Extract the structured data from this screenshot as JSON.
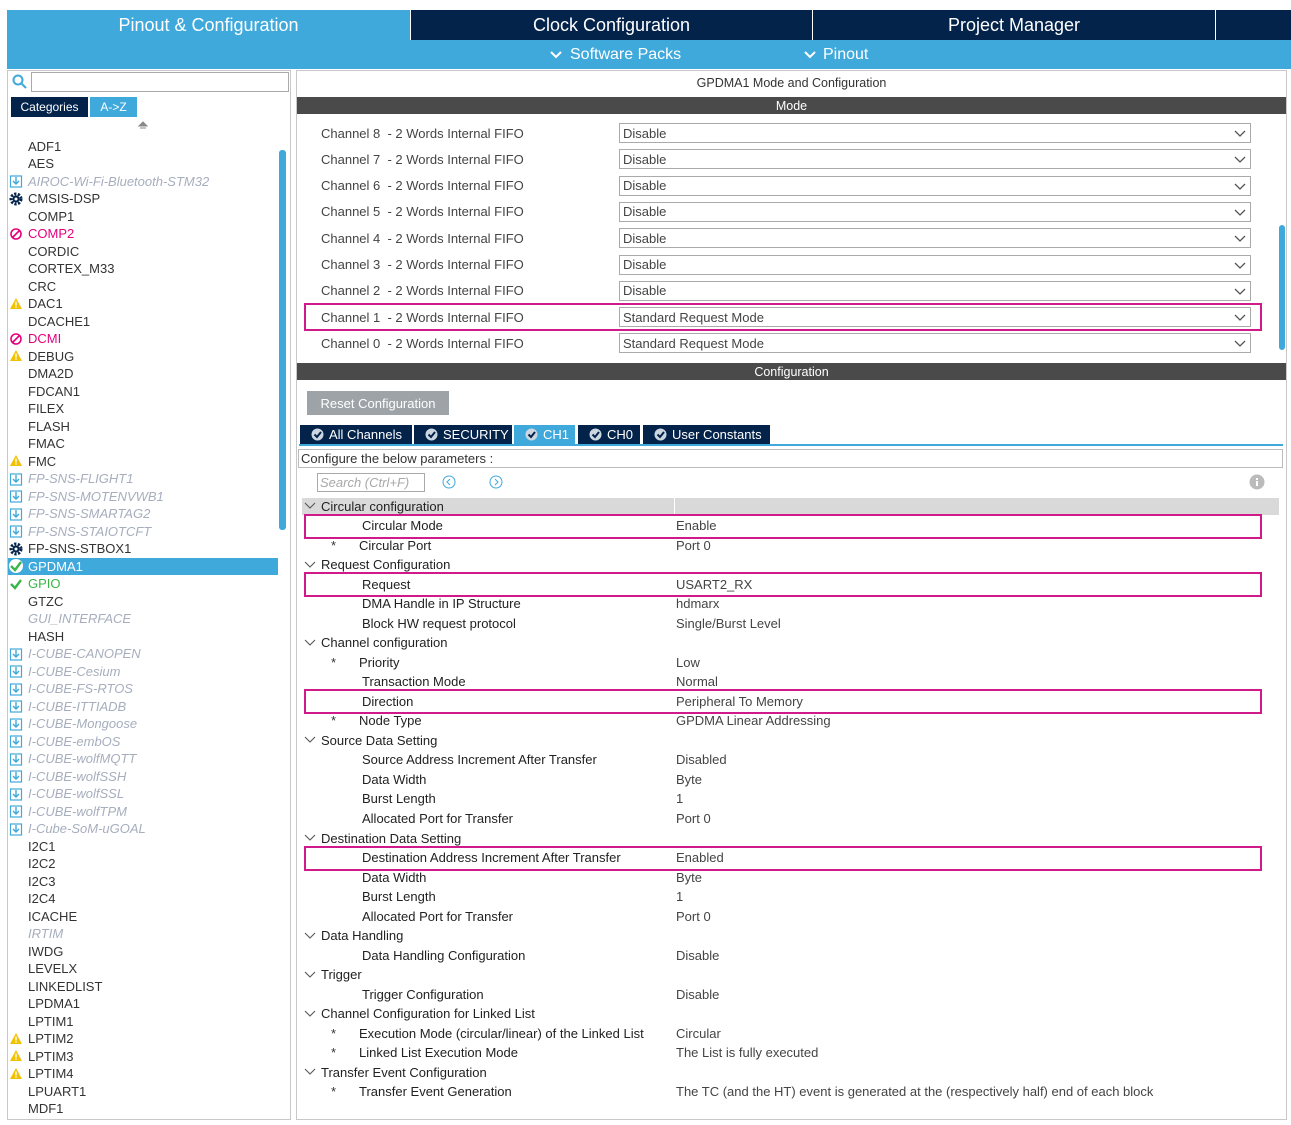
{
  "tabs": [
    {
      "label": "Pinout & Configuration",
      "active": true
    },
    {
      "label": "Clock Configuration"
    },
    {
      "label": "Project Manager"
    }
  ],
  "subtabs": [
    "Software Packs",
    "Pinout"
  ],
  "sidebar": {
    "tabs": [
      {
        "label": "Categories"
      },
      {
        "label": "A->Z",
        "active": true
      }
    ],
    "items": [
      {
        "label": "ADF1"
      },
      {
        "label": "AES"
      },
      {
        "label": "AIROC-Wi-Fi-Bluetooth-STM32",
        "status": "download"
      },
      {
        "label": "CMSIS-DSP",
        "status": "gear"
      },
      {
        "label": "COMP1"
      },
      {
        "label": "COMP2",
        "status": "error"
      },
      {
        "label": "CORDIC"
      },
      {
        "label": "CORTEX_M33"
      },
      {
        "label": "CRC"
      },
      {
        "label": "DAC1",
        "status": "warning"
      },
      {
        "label": "DCACHE1"
      },
      {
        "label": "DCMI",
        "status": "error"
      },
      {
        "label": "DEBUG",
        "status": "warning"
      },
      {
        "label": "DMA2D"
      },
      {
        "label": "FDCAN1"
      },
      {
        "label": "FILEX"
      },
      {
        "label": "FLASH"
      },
      {
        "label": "FMAC"
      },
      {
        "label": "FMC",
        "status": "warning"
      },
      {
        "label": "FP-SNS-FLIGHT1",
        "status": "download"
      },
      {
        "label": "FP-SNS-MOTENVWB1",
        "status": "download"
      },
      {
        "label": "FP-SNS-SMARTAG2",
        "status": "download"
      },
      {
        "label": "FP-SNS-STAIOTCFT",
        "status": "download"
      },
      {
        "label": "FP-SNS-STBOX1",
        "status": "gear"
      },
      {
        "label": "GPDMA1",
        "status": "check",
        "selected": true
      },
      {
        "label": "GPIO",
        "status": "check"
      },
      {
        "label": "GTZC"
      },
      {
        "label": "GUI_INTERFACE",
        "status": "disabled"
      },
      {
        "label": "HASH"
      },
      {
        "label": "I-CUBE-CANOPEN",
        "status": "download"
      },
      {
        "label": "I-CUBE-Cesium",
        "status": "download"
      },
      {
        "label": "I-CUBE-FS-RTOS",
        "status": "download"
      },
      {
        "label": "I-CUBE-ITTIADB",
        "status": "download"
      },
      {
        "label": "I-CUBE-Mongoose",
        "status": "download"
      },
      {
        "label": "I-CUBE-embOS",
        "status": "download"
      },
      {
        "label": "I-CUBE-wolfMQTT",
        "status": "download"
      },
      {
        "label": "I-CUBE-wolfSSH",
        "status": "download"
      },
      {
        "label": "I-CUBE-wolfSSL",
        "status": "download"
      },
      {
        "label": "I-CUBE-wolfTPM",
        "status": "download"
      },
      {
        "label": "I-Cube-SoM-uGOAL",
        "status": "download"
      },
      {
        "label": "I2C1"
      },
      {
        "label": "I2C2"
      },
      {
        "label": "I2C3"
      },
      {
        "label": "I2C4"
      },
      {
        "label": "ICACHE"
      },
      {
        "label": "IRTIM",
        "status": "disabled"
      },
      {
        "label": "IWDG"
      },
      {
        "label": "LEVELX"
      },
      {
        "label": "LINKEDLIST"
      },
      {
        "label": "LPDMA1"
      },
      {
        "label": "LPTIM1"
      },
      {
        "label": "LPTIM2",
        "status": "warning"
      },
      {
        "label": "LPTIM3",
        "status": "warning"
      },
      {
        "label": "LPTIM4",
        "status": "warning"
      },
      {
        "label": "LPUART1"
      },
      {
        "label": "MDF1"
      }
    ]
  },
  "panel": {
    "title": "GPDMA1 Mode and Configuration",
    "mode_header": "Mode",
    "channels": [
      {
        "label": "Channel 8  - 2 Words Internal FIFO",
        "value": "Disable"
      },
      {
        "label": "Channel 7  - 2 Words Internal FIFO",
        "value": "Disable"
      },
      {
        "label": "Channel 6  - 2 Words Internal FIFO",
        "value": "Disable"
      },
      {
        "label": "Channel 5  - 2 Words Internal FIFO",
        "value": "Disable"
      },
      {
        "label": "Channel 4  - 2 Words Internal FIFO",
        "value": "Disable"
      },
      {
        "label": "Channel 3  - 2 Words Internal FIFO",
        "value": "Disable"
      },
      {
        "label": "Channel 2  - 2 Words Internal FIFO",
        "value": "Disable"
      },
      {
        "label": "Channel 1  - 2 Words Internal FIFO",
        "value": "Standard Request Mode",
        "highlighted": true
      },
      {
        "label": "Channel 0  - 2 Words Internal FIFO",
        "value": "Standard Request Mode"
      }
    ],
    "config_header": "Configuration",
    "reset_button": "Reset Configuration",
    "config_tabs": [
      {
        "label": "All Channels"
      },
      {
        "label": "SECURITY"
      },
      {
        "label": "CH1",
        "active": true
      },
      {
        "label": "CH0"
      },
      {
        "label": "User Constants"
      }
    ],
    "params_hint": "Configure the below parameters :",
    "search_placeholder": "Search (Ctrl+F)",
    "groups": [
      {
        "label": "Circular configuration",
        "rows": [
          {
            "label": "Circular Mode",
            "value": "Enable",
            "highlighted": true
          },
          {
            "marker": "*",
            "label": "Circular Port",
            "value": "Port 0"
          }
        ]
      },
      {
        "label": "Request Configuration",
        "rows": [
          {
            "label": "Request",
            "value": "USART2_RX",
            "highlighted": true
          },
          {
            "label": "DMA Handle in IP Structure",
            "value": "hdmarx"
          },
          {
            "label": "Block HW request protocol",
            "value": "Single/Burst Level"
          }
        ]
      },
      {
        "label": "Channel configuration",
        "rows": [
          {
            "marker": "*",
            "label": "Priority",
            "value": "Low"
          },
          {
            "label": "Transaction Mode",
            "value": "Normal"
          },
          {
            "label": "Direction",
            "value": "Peripheral To Memory",
            "highlighted": true
          },
          {
            "marker": "*",
            "label": "Node Type",
            "value": "GPDMA Linear Addressing"
          }
        ]
      },
      {
        "label": "Source Data Setting",
        "rows": [
          {
            "label": "Source Address Increment After Transfer",
            "value": "Disabled"
          },
          {
            "label": "Data Width",
            "value": "Byte"
          },
          {
            "label": "Burst Length",
            "value": "1"
          },
          {
            "label": "Allocated Port for Transfer",
            "value": "Port 0"
          }
        ]
      },
      {
        "label": "Destination Data Setting",
        "rows": [
          {
            "label": "Destination Address Increment After Transfer",
            "value": "Enabled",
            "highlighted": true
          },
          {
            "label": "Data Width",
            "value": "Byte"
          },
          {
            "label": "Burst Length",
            "value": "1"
          },
          {
            "label": "Allocated Port for Transfer",
            "value": "Port 0"
          }
        ]
      },
      {
        "label": "Data Handling",
        "rows": [
          {
            "label": "Data Handling Configuration",
            "value": "Disable"
          }
        ]
      },
      {
        "label": "Trigger",
        "rows": [
          {
            "label": "Trigger Configuration",
            "value": "Disable"
          }
        ]
      },
      {
        "label": "Channel Configuration for Linked List",
        "rows": [
          {
            "marker": "*",
            "label": "Execution Mode (circular/linear) of the Linked List",
            "value": "Circular"
          },
          {
            "marker": "*",
            "label": "Linked List Execution Mode",
            "value": "The List is fully executed"
          }
        ]
      },
      {
        "label": "Transfer Event Configuration",
        "rows": [
          {
            "marker": "*",
            "label": "Transfer Event Generation",
            "value": "The TC (and the HT) event is generated at the (respectively half) end of each block"
          }
        ]
      }
    ]
  }
}
